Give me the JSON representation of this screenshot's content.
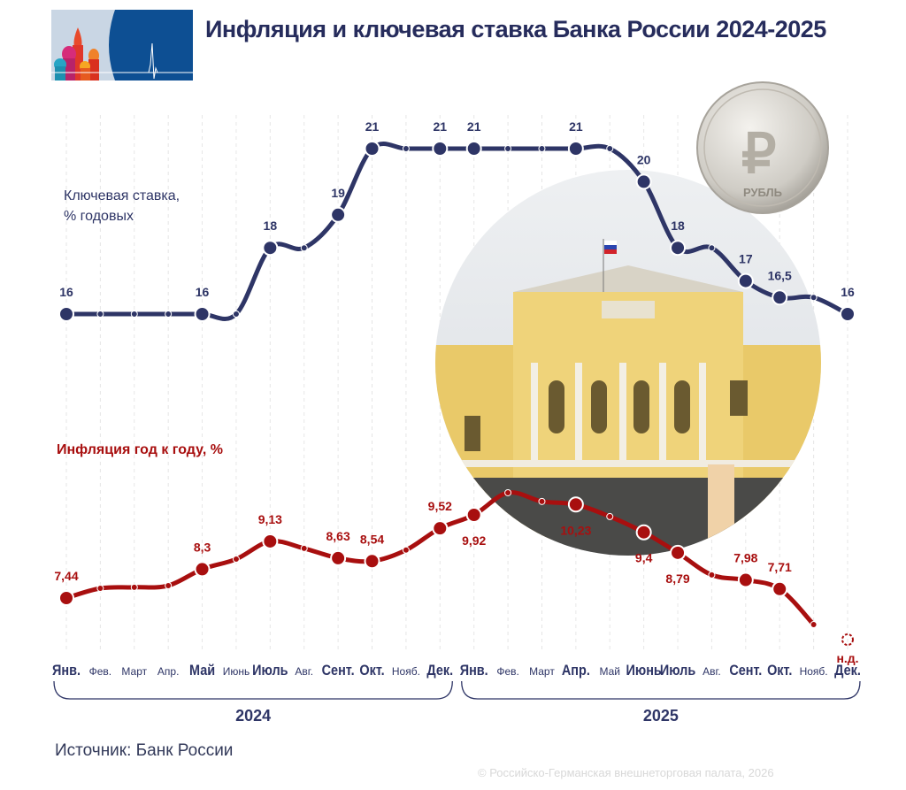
{
  "header": {
    "title": "Инфляция и ключевая ставка Банка России 2024-2025"
  },
  "footer": {
    "source": "Источник: Банк России",
    "copyright": "© Российско-Германская внешнеторговая палата, 2026"
  },
  "coin": {
    "text": "РУБЛЬ",
    "symbol": "₽"
  },
  "chart_data": {
    "type": "line",
    "title": "Инфляция и ключевая ставка Банка России 2024-2025",
    "categories": [
      "Янв.",
      "Фев.",
      "Март",
      "Апр.",
      "Май",
      "Июнь",
      "Июль",
      "Авг.",
      "Сент.",
      "Окт.",
      "Нояб.",
      "Дек.",
      "Янв.",
      "Фев.",
      "Март",
      "Апр.",
      "Май",
      "Июнь",
      "Июль",
      "Авг.",
      "Сент.",
      "Окт.",
      "Нояб.",
      "Дек."
    ],
    "emphasized_categories": [
      0,
      4,
      6,
      8,
      9,
      11,
      12,
      15,
      17,
      18,
      20,
      21,
      23
    ],
    "years": [
      {
        "label": "2024",
        "from": 0,
        "to": 11
      },
      {
        "label": "2025",
        "from": 12,
        "to": 23
      }
    ],
    "grid": "vertical dashed",
    "series": [
      {
        "name": "Ключевая ставка,\n% годовых",
        "name_lines": [
          "Ключевая ставка,",
          "% годовых"
        ],
        "color": "#2e3566",
        "values": [
          16,
          16,
          16,
          16,
          16,
          16,
          18,
          18,
          19,
          21,
          21,
          21,
          21,
          21,
          21,
          21,
          21,
          20,
          18,
          18,
          17,
          16.5,
          16.5,
          16
        ],
        "labels": [
          "16",
          "",
          "",
          "",
          "16",
          "",
          "18",
          "",
          "19",
          "21",
          "",
          "21",
          "21",
          "",
          "",
          "21",
          "",
          "20",
          "18",
          "",
          "17",
          "16,5",
          "",
          "16"
        ]
      },
      {
        "name": "Инфляция год к году, %",
        "color": "#a80f0f",
        "values": [
          7.44,
          7.73,
          7.76,
          7.81,
          8.3,
          8.6,
          9.13,
          8.92,
          8.63,
          8.54,
          8.87,
          9.52,
          9.92,
          10.58,
          10.32,
          10.23,
          9.87,
          9.4,
          8.79,
          8.13,
          7.98,
          7.71,
          6.65,
          null
        ],
        "labels": [
          "7,44",
          "",
          "",
          "",
          "8,3",
          "",
          "9,13",
          "",
          "8,63",
          "8,54",
          "",
          "9,52",
          "9,92",
          "",
          "",
          "10,23",
          "",
          "9,4",
          "8,79",
          "",
          "7,98",
          "7,71",
          "",
          "н.д."
        ],
        "label_positions": [
          "above",
          "",
          "",
          "",
          "above",
          "",
          "above",
          "",
          "above",
          "above",
          "",
          "above",
          "below",
          "",
          "",
          "below",
          "",
          "below",
          "below",
          "",
          "above",
          "above",
          "",
          "below"
        ]
      }
    ]
  }
}
